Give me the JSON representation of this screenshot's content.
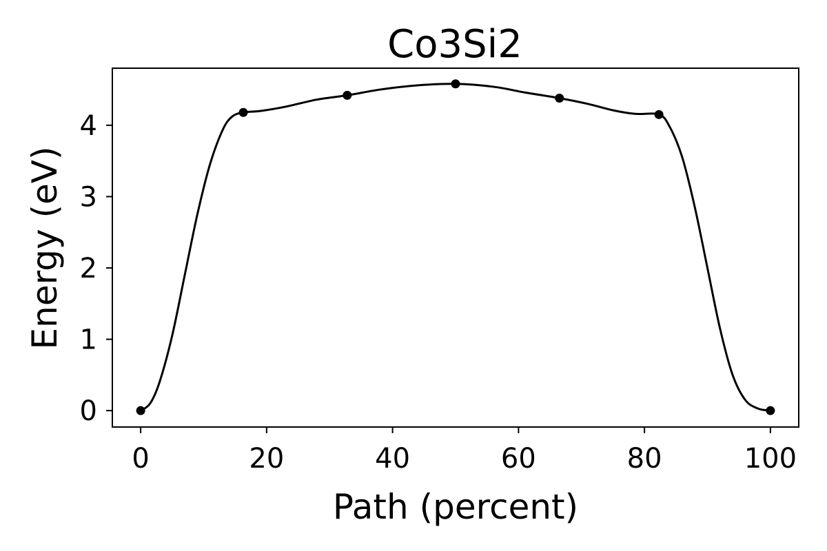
{
  "chart_data": {
    "type": "line",
    "title": "Co3Si2",
    "xlabel": "Path (percent)",
    "ylabel": "Energy (eV)",
    "xlim": [
      -4.5,
      104.5
    ],
    "ylim": [
      -0.23,
      4.8
    ],
    "xticks": [
      0,
      20,
      40,
      60,
      80,
      100
    ],
    "yticks": [
      0,
      1,
      2,
      3,
      4
    ],
    "grid": false,
    "series": [
      {
        "color": "#000000",
        "markers": true,
        "x": [
          0,
          16.3,
          32.8,
          50.0,
          66.5,
          82.3,
          100
        ],
        "y": [
          0.0,
          4.18,
          4.42,
          4.58,
          4.38,
          4.15,
          0.0
        ]
      }
    ],
    "curve": {
      "x": [
        0,
        1.5,
        3,
        5,
        7,
        9,
        11,
        13,
        14.5,
        16.3,
        19,
        23,
        28,
        32.8,
        38,
        44,
        50,
        56,
        61,
        66.5,
        71,
        75,
        78.5,
        82.3,
        84,
        86,
        88,
        90,
        92,
        94,
        96,
        98,
        100
      ],
      "y": [
        0.0,
        0.1,
        0.4,
        1.05,
        1.9,
        2.75,
        3.45,
        3.93,
        4.12,
        4.18,
        4.2,
        4.26,
        4.36,
        4.42,
        4.5,
        4.56,
        4.58,
        4.54,
        4.46,
        4.38,
        4.3,
        4.21,
        4.16,
        4.15,
        3.98,
        3.55,
        2.85,
        2.0,
        1.15,
        0.5,
        0.15,
        0.03,
        0.0
      ]
    }
  }
}
